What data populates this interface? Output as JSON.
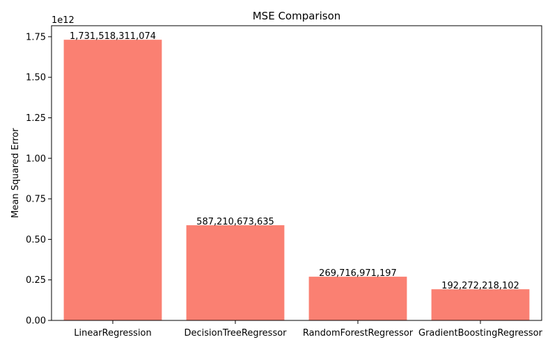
{
  "chart_data": {
    "type": "bar",
    "title": "MSE Comparison",
    "xlabel": "",
    "ylabel": "Mean Squared Error",
    "offset_text": "1e12",
    "categories": [
      "LinearRegression",
      "DecisionTreeRegressor",
      "RandomForestRegressor",
      "GradientBoostingRegressor"
    ],
    "values": [
      1731518311074,
      587210673635,
      269716971197,
      192272218102
    ],
    "data_labels": [
      "1,731,518,311,074",
      "587,210,673,635",
      "269,716,971,197",
      "192,272,218,102"
    ],
    "ylim": [
      0,
      1818000000000.0
    ],
    "yticks": [
      0,
      250000000000.0,
      500000000000.0,
      750000000000.0,
      1000000000000.0,
      1250000000000.0,
      1500000000000.0,
      1750000000000.0
    ],
    "ytick_labels": [
      "0.00",
      "0.25",
      "0.50",
      "0.75",
      "1.00",
      "1.25",
      "1.50",
      "1.75"
    ],
    "bar_color": "#fa8072",
    "grid": false,
    "legend": "none"
  }
}
